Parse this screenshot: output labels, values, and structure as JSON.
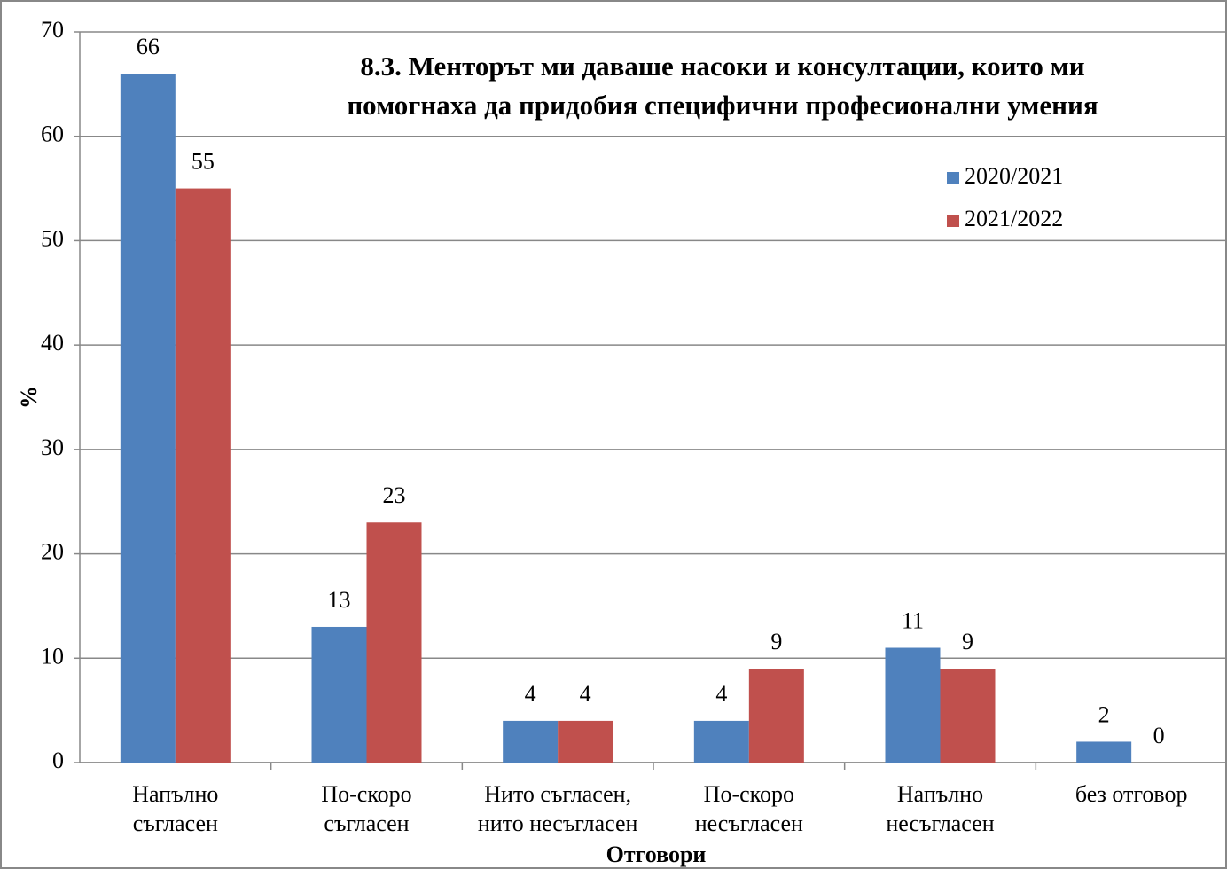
{
  "chart_data": {
    "type": "bar",
    "title": [
      "8.3. Менторът ми даваше насоки и консултации, които ми",
      "помогнаха да придобия специфични професионални умения"
    ],
    "x_label": "Отговори",
    "y_label": "%",
    "categories": [
      [
        "Напълно",
        "съгласен"
      ],
      [
        "По-скоро",
        "съгласен"
      ],
      [
        "Нито съгласен,",
        "нито несъгласен"
      ],
      [
        "По-скоро",
        "несъгласен"
      ],
      [
        "Напълно",
        "несъгласен"
      ],
      [
        "без отговор"
      ]
    ],
    "series": [
      {
        "name": "2020/2021",
        "color": "#4f81bd",
        "values": [
          66,
          13,
          4,
          4,
          11,
          2
        ]
      },
      {
        "name": "2021/2022",
        "color": "#c0504d",
        "values": [
          55,
          23,
          4,
          9,
          9,
          0
        ]
      }
    ],
    "ylim": [
      0,
      70
    ],
    "yticks": [
      0,
      10,
      20,
      30,
      40,
      50,
      60,
      70
    ],
    "grid": true,
    "legend": "upper right"
  }
}
